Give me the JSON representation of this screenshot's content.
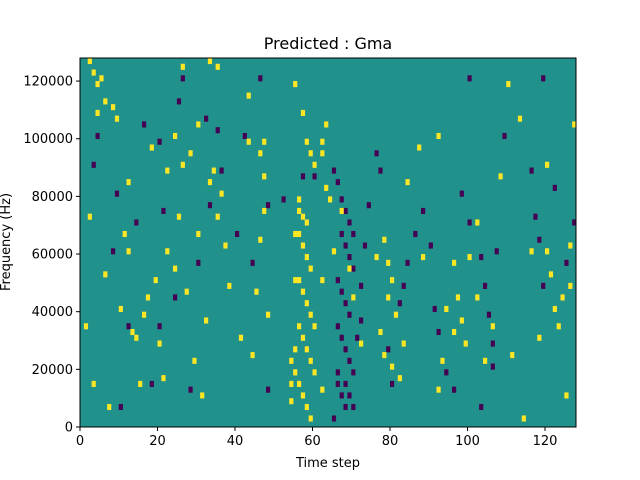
{
  "chart_data": {
    "type": "heatmap",
    "title": "Predicted : Gma",
    "xlabel": "Time step",
    "ylabel": "Frequency (Hz)",
    "xlim": [
      0,
      128
    ],
    "ylim": [
      0,
      128000
    ],
    "x_ticks": [
      0,
      20,
      40,
      60,
      80,
      100,
      120
    ],
    "x_tick_labels": [
      "0",
      "20",
      "40",
      "60",
      "80",
      "100",
      "120"
    ],
    "y_ticks": [
      0,
      20000,
      40000,
      60000,
      80000,
      100000,
      120000
    ],
    "y_tick_labels": [
      "0",
      "20000",
      "40000",
      "60000",
      "80000",
      "100000",
      "120000"
    ],
    "grid": false,
    "legend": "none",
    "colormap": "viridis",
    "colors": {
      "background": "#21918c",
      "high": "#fde725",
      "low": "#440154"
    },
    "grid_shape": {
      "time_steps": 128,
      "frequency_bins": 64,
      "bin_hz": 2000
    },
    "background_value": 0,
    "high_cells": [
      [
        2,
        126000
      ],
      [
        3,
        122000
      ],
      [
        4,
        118000
      ],
      [
        5,
        120000
      ],
      [
        6,
        112000
      ],
      [
        4,
        108000
      ],
      [
        8,
        110000
      ],
      [
        9,
        106000
      ],
      [
        26,
        124000
      ],
      [
        33,
        126000
      ],
      [
        35,
        124000
      ],
      [
        43,
        114000
      ],
      [
        43,
        98000
      ],
      [
        30,
        104000
      ],
      [
        28,
        94000
      ],
      [
        26,
        90000
      ],
      [
        33,
        84000
      ],
      [
        34,
        88000
      ],
      [
        24,
        100000
      ],
      [
        18,
        96000
      ],
      [
        22,
        88000
      ],
      [
        46,
        94000
      ],
      [
        47,
        98000
      ],
      [
        47,
        86000
      ],
      [
        55,
        118000
      ],
      [
        57,
        108000
      ],
      [
        58,
        98000
      ],
      [
        59,
        94000
      ],
      [
        60,
        90000
      ],
      [
        62,
        94000
      ],
      [
        62,
        98000
      ],
      [
        63,
        104000
      ],
      [
        63,
        82000
      ],
      [
        64,
        78000
      ],
      [
        56,
        78000
      ],
      [
        56,
        74000
      ],
      [
        57,
        72000
      ],
      [
        58,
        70000
      ],
      [
        56,
        66000
      ],
      [
        57,
        62000
      ],
      [
        58,
        58000
      ],
      [
        59,
        54000
      ],
      [
        56,
        50000
      ],
      [
        57,
        46000
      ],
      [
        58,
        42000
      ],
      [
        59,
        38000
      ],
      [
        56,
        34000
      ],
      [
        57,
        30000
      ],
      [
        58,
        26000
      ],
      [
        59,
        22000
      ],
      [
        55,
        18000
      ],
      [
        56,
        14000
      ],
      [
        57,
        10000
      ],
      [
        58,
        6000
      ],
      [
        59,
        2000
      ],
      [
        55,
        66000
      ],
      [
        55,
        50000
      ],
      [
        55,
        26000
      ],
      [
        54,
        22000
      ],
      [
        54,
        14000
      ],
      [
        54,
        8000
      ],
      [
        60,
        18000
      ],
      [
        60,
        34000
      ],
      [
        62,
        12000
      ],
      [
        62,
        50000
      ],
      [
        65,
        60000
      ],
      [
        67,
        74000
      ],
      [
        69,
        54000
      ],
      [
        70,
        44000
      ],
      [
        72,
        28000
      ],
      [
        76,
        58000
      ],
      [
        78,
        64000
      ],
      [
        79,
        56000
      ],
      [
        80,
        50000
      ],
      [
        79,
        44000
      ],
      [
        81,
        38000
      ],
      [
        78,
        24000
      ],
      [
        80,
        20000
      ],
      [
        82,
        16000
      ],
      [
        83,
        28000
      ],
      [
        77,
        32000
      ],
      [
        84,
        84000
      ],
      [
        87,
        96000
      ],
      [
        92,
        100000
      ],
      [
        96,
        56000
      ],
      [
        97,
        44000
      ],
      [
        98,
        36000
      ],
      [
        96,
        32000
      ],
      [
        99,
        28000
      ],
      [
        100,
        58000
      ],
      [
        102,
        70000
      ],
      [
        104,
        22000
      ],
      [
        108,
        86000
      ],
      [
        110,
        118000
      ],
      [
        113,
        106000
      ],
      [
        114,
        2000
      ],
      [
        120,
        60000
      ],
      [
        121,
        52000
      ],
      [
        122,
        40000
      ],
      [
        123,
        34000
      ],
      [
        124,
        44000
      ],
      [
        126,
        48000
      ],
      [
        126,
        62000
      ],
      [
        127,
        104000
      ],
      [
        15,
        14000
      ],
      [
        14,
        30000
      ],
      [
        16,
        38000
      ],
      [
        17,
        44000
      ],
      [
        19,
        50000
      ],
      [
        20,
        28000
      ],
      [
        21,
        16000
      ],
      [
        22,
        60000
      ],
      [
        24,
        54000
      ],
      [
        25,
        72000
      ],
      [
        27,
        46000
      ],
      [
        29,
        22000
      ],
      [
        30,
        66000
      ],
      [
        31,
        10000
      ],
      [
        32,
        36000
      ],
      [
        35,
        72000
      ],
      [
        36,
        80000
      ],
      [
        37,
        62000
      ],
      [
        38,
        48000
      ],
      [
        41,
        30000
      ],
      [
        44,
        24000
      ],
      [
        45,
        46000
      ],
      [
        46,
        64000
      ],
      [
        47,
        74000
      ],
      [
        48,
        38000
      ],
      [
        10,
        40000
      ],
      [
        11,
        66000
      ],
      [
        12,
        84000
      ],
      [
        7,
        6000
      ],
      [
        6,
        52000
      ],
      [
        13,
        32000
      ],
      [
        12,
        60000
      ],
      [
        2,
        72000
      ],
      [
        1,
        34000
      ],
      [
        3,
        14000
      ],
      [
        88,
        58000
      ],
      [
        92,
        12000
      ],
      [
        93,
        22000
      ],
      [
        94,
        40000
      ],
      [
        102,
        44000
      ],
      [
        106,
        34000
      ],
      [
        111,
        24000
      ],
      [
        116,
        60000
      ],
      [
        118,
        30000
      ],
      [
        120,
        90000
      ],
      [
        125,
        10000
      ]
    ],
    "low_cells": [
      [
        26,
        120000
      ],
      [
        46,
        120000
      ],
      [
        100,
        120000
      ],
      [
        119,
        120000
      ],
      [
        4,
        100000
      ],
      [
        20,
        98000
      ],
      [
        32,
        106000
      ],
      [
        42,
        100000
      ],
      [
        48,
        76000
      ],
      [
        52,
        78000
      ],
      [
        57,
        86000
      ],
      [
        60,
        86000
      ],
      [
        65,
        88000
      ],
      [
        66,
        84000
      ],
      [
        67,
        78000
      ],
      [
        68,
        74000
      ],
      [
        69,
        70000
      ],
      [
        70,
        66000
      ],
      [
        67,
        66000
      ],
      [
        68,
        62000
      ],
      [
        69,
        58000
      ],
      [
        70,
        54000
      ],
      [
        66,
        50000
      ],
      [
        67,
        46000
      ],
      [
        68,
        42000
      ],
      [
        69,
        38000
      ],
      [
        66,
        34000
      ],
      [
        67,
        30000
      ],
      [
        68,
        26000
      ],
      [
        69,
        22000
      ],
      [
        70,
        18000
      ],
      [
        66,
        14000
      ],
      [
        67,
        10000
      ],
      [
        68,
        6000
      ],
      [
        65,
        2000
      ],
      [
        66,
        18000
      ],
      [
        68,
        14000
      ],
      [
        69,
        10000
      ],
      [
        70,
        6000
      ],
      [
        71,
        30000
      ],
      [
        72,
        36000
      ],
      [
        72,
        48000
      ],
      [
        73,
        62000
      ],
      [
        74,
        76000
      ],
      [
        76,
        94000
      ],
      [
        77,
        88000
      ],
      [
        79,
        26000
      ],
      [
        80,
        14000
      ],
      [
        82,
        42000
      ],
      [
        83,
        48000
      ],
      [
        84,
        56000
      ],
      [
        86,
        66000
      ],
      [
        88,
        74000
      ],
      [
        90,
        62000
      ],
      [
        91,
        40000
      ],
      [
        92,
        32000
      ],
      [
        94,
        18000
      ],
      [
        96,
        12000
      ],
      [
        98,
        80000
      ],
      [
        100,
        70000
      ],
      [
        103,
        58000
      ],
      [
        104,
        48000
      ],
      [
        105,
        38000
      ],
      [
        106,
        28000
      ],
      [
        106,
        20000
      ],
      [
        103,
        6000
      ],
      [
        107,
        60000
      ],
      [
        109,
        100000
      ],
      [
        116,
        88000
      ],
      [
        117,
        72000
      ],
      [
        118,
        64000
      ],
      [
        119,
        48000
      ],
      [
        122,
        82000
      ],
      [
        125,
        56000
      ],
      [
        127,
        70000
      ],
      [
        10,
        6000
      ],
      [
        14,
        70000
      ],
      [
        12,
        34000
      ],
      [
        18,
        14000
      ],
      [
        20,
        34000
      ],
      [
        24,
        44000
      ],
      [
        28,
        12000
      ],
      [
        30,
        56000
      ],
      [
        33,
        76000
      ],
      [
        36,
        88000
      ],
      [
        40,
        66000
      ],
      [
        44,
        56000
      ],
      [
        48,
        12000
      ],
      [
        3,
        90000
      ],
      [
        8,
        60000
      ],
      [
        9,
        80000
      ],
      [
        16,
        104000
      ],
      [
        21,
        74000
      ],
      [
        25,
        112000
      ],
      [
        35,
        102000
      ]
    ]
  }
}
